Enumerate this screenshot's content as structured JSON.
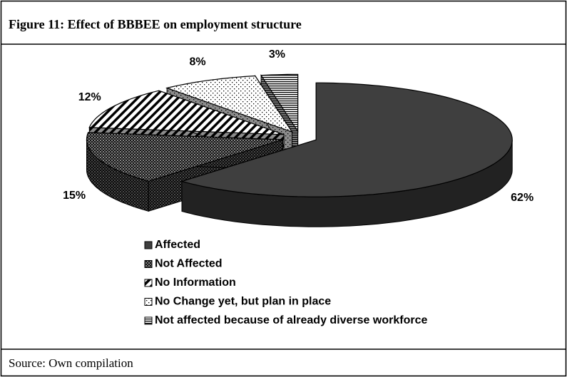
{
  "title": "Figure 11:  Effect of BBBEE on employment structure",
  "chart_data": {
    "type": "pie3d",
    "categories": [
      "Affected",
      "Not Affected",
      "No Information",
      "No Change yet, but plan in place",
      "Not affected because of already diverse workforce"
    ],
    "values": [
      62,
      15,
      12,
      8,
      3
    ],
    "value_labels": [
      "62%",
      "15%",
      "12%",
      "8%",
      "3%"
    ],
    "colors": [
      "#3f3f3f",
      "#1a1a1a",
      "#ffffff",
      "#ffffff",
      "#ffffff"
    ],
    "patterns": [
      "solid",
      "checker",
      "diagonal",
      "dots",
      "hstripes"
    ],
    "legend": "bottom"
  },
  "source": "Source:  Own compilation"
}
